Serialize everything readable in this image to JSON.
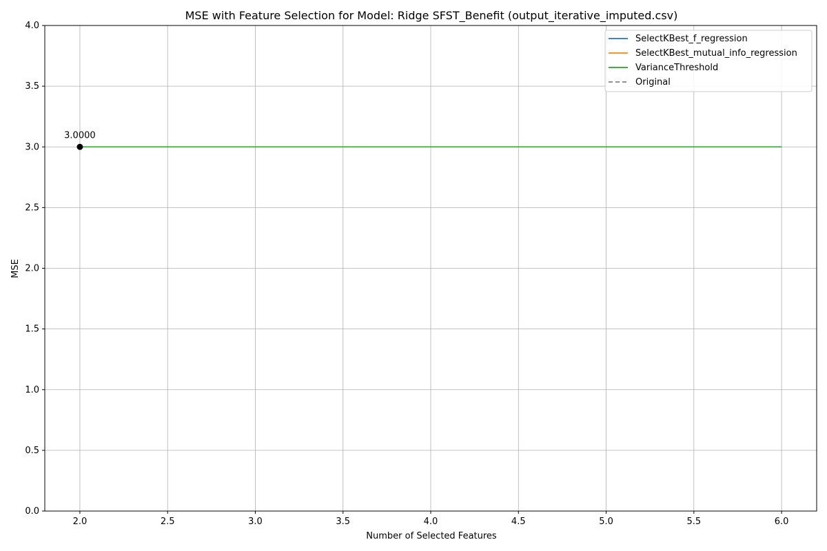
{
  "chart_data": {
    "type": "line",
    "title": "MSE with Feature Selection for Model: Ridge SFST_Benefit (output_iterative_imputed.csv)",
    "xlabel": "Number of Selected Features",
    "ylabel": "MSE",
    "xlim": [
      1.8,
      6.2
    ],
    "ylim": [
      0.0,
      4.0
    ],
    "xticks": [
      2.0,
      2.5,
      3.0,
      3.5,
      4.0,
      4.5,
      5.0,
      5.5,
      6.0
    ],
    "yticks": [
      0.0,
      0.5,
      1.0,
      1.5,
      2.0,
      2.5,
      3.0,
      3.5,
      4.0
    ],
    "xtick_labels": [
      "2.0",
      "2.5",
      "3.0",
      "3.5",
      "4.0",
      "4.5",
      "5.0",
      "5.5",
      "6.0"
    ],
    "ytick_labels": [
      "0.0",
      "0.5",
      "1.0",
      "1.5",
      "2.0",
      "2.5",
      "3.0",
      "3.5",
      "4.0"
    ],
    "grid": true,
    "legend_position": "top-right",
    "series": [
      {
        "name": "SelectKBest_f_regression",
        "color": "#1f77b4",
        "dash": "solid",
        "x": [
          2,
          3,
          4,
          5,
          6
        ],
        "y": [
          3.0,
          3.0,
          3.0,
          3.0,
          3.0
        ]
      },
      {
        "name": "SelectKBest_mutual_info_regression",
        "color": "#ff7f0e",
        "dash": "solid",
        "x": [
          2,
          3,
          4,
          5,
          6
        ],
        "y": [
          3.0,
          3.0,
          3.0,
          3.0,
          3.0
        ]
      },
      {
        "name": "VarianceThreshold",
        "color": "#2ca02c",
        "dash": "solid",
        "x": [
          2,
          3,
          4,
          5,
          6
        ],
        "y": [
          3.0,
          3.0,
          3.0,
          3.0,
          3.0
        ]
      },
      {
        "name": "Original",
        "color": "#808080",
        "dash": "dashed",
        "x": [],
        "y": []
      }
    ],
    "highlight_point": {
      "x": 2.0,
      "y": 3.0,
      "color": "#000000",
      "label": "3.0000"
    }
  }
}
